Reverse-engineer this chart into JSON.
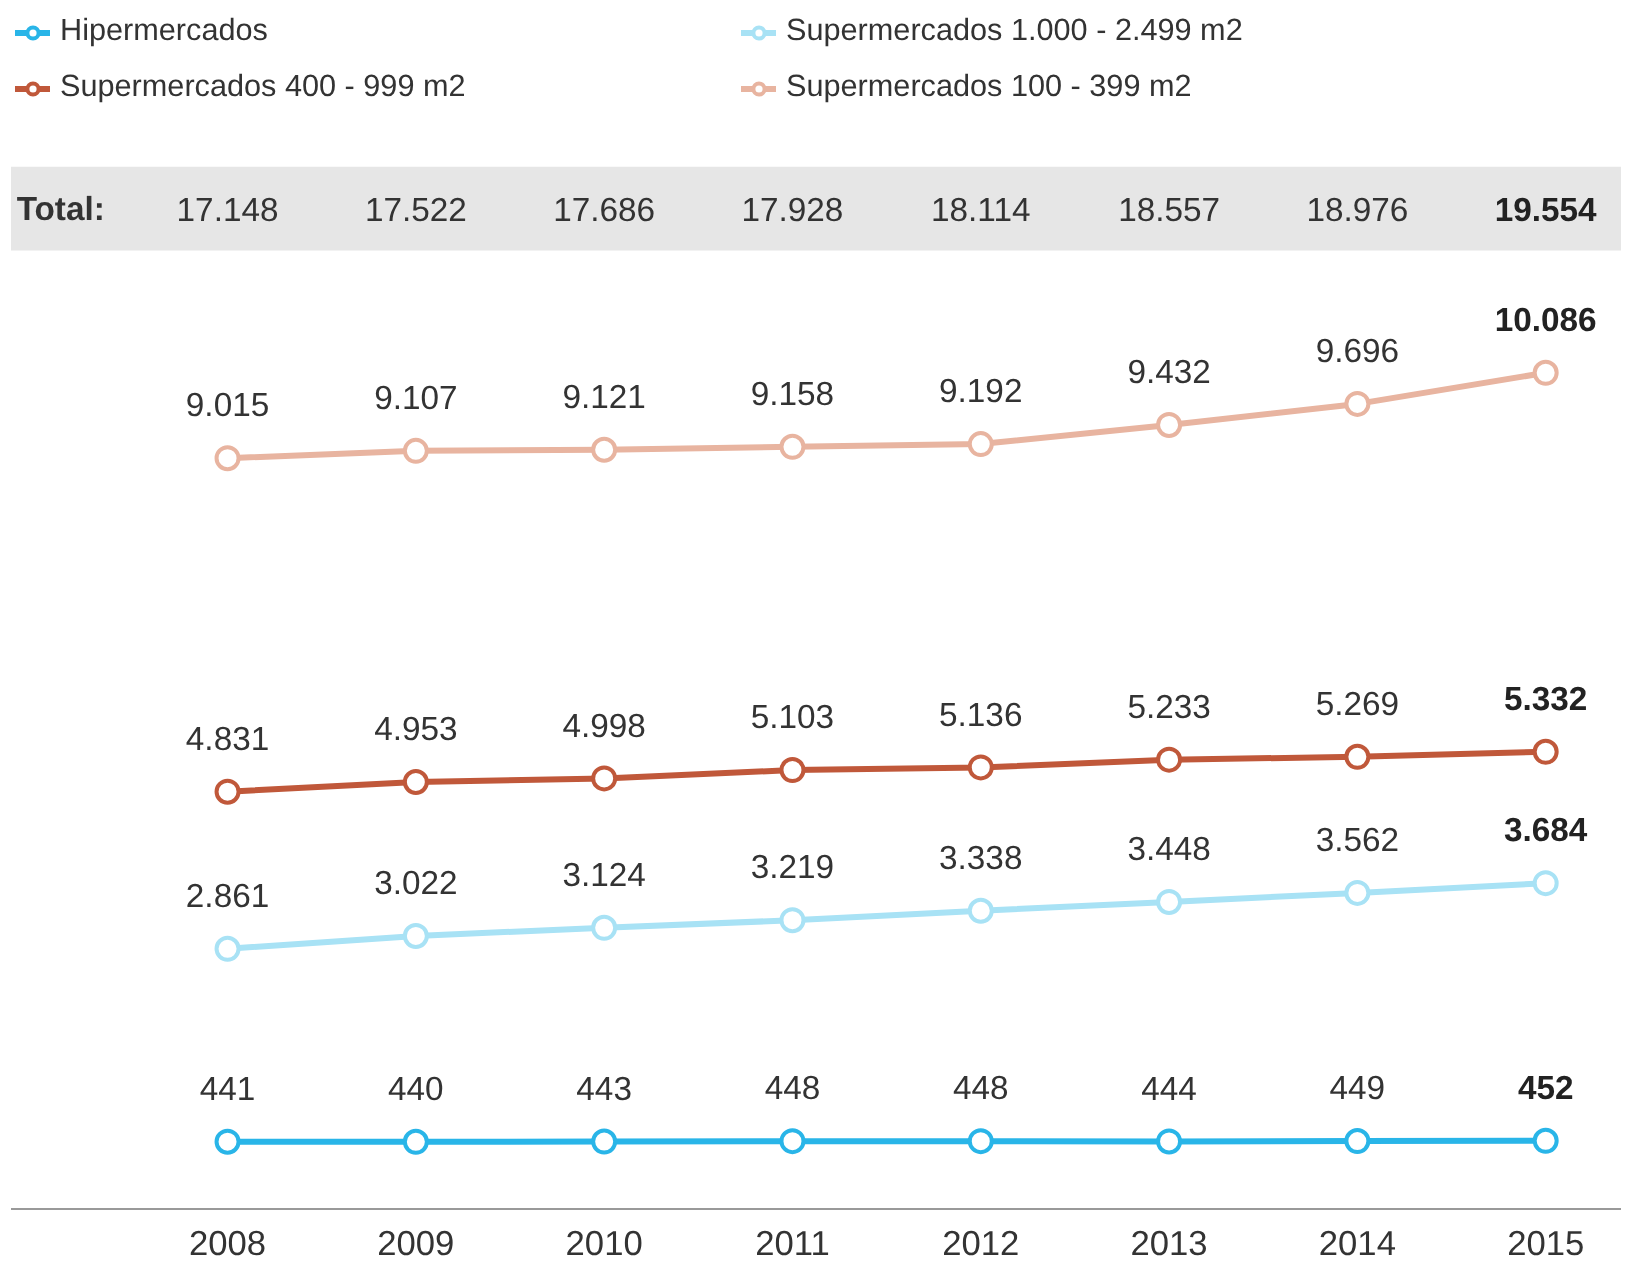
{
  "chart_data": {
    "type": "line",
    "categories": [
      "2008",
      "2009",
      "2010",
      "2011",
      "2012",
      "2013",
      "2014",
      "2015"
    ],
    "tick_labels": "x",
    "grid": false,
    "legend": "top",
    "marker": "circle",
    "line_style": "solid",
    "totals": [
      "17.148",
      "17.522",
      "17.686",
      "17.928",
      "18.114",
      "18.557",
      "18.976",
      "19.554"
    ],
    "annotations": [
      "Total:"
    ],
    "series": [
      {
        "name": "Hipermercados",
        "color": "#29b5e8",
        "values": [
          441,
          440,
          443,
          448,
          448,
          444,
          449,
          452
        ],
        "value_labels": [
          "441",
          "440",
          "443",
          "448",
          "448",
          "444",
          "449",
          "452"
        ]
      },
      {
        "name": "Supermercados 1.000 - 2.499 m2",
        "color": "#a8e2f5",
        "values": [
          2861,
          3022,
          3124,
          3219,
          3338,
          3448,
          3562,
          3684
        ],
        "value_labels": [
          "2.861",
          "3.022",
          "3.124",
          "3.219",
          "3.338",
          "3.448",
          "3.562",
          "3.684"
        ]
      },
      {
        "name": "Supermercados 400 - 999 m2",
        "color": "#c0583a",
        "values": [
          4831,
          4953,
          4998,
          5103,
          5136,
          5233,
          5269,
          5332
        ],
        "value_labels": [
          "4.831",
          "4.953",
          "4.998",
          "5.103",
          "5.136",
          "5.233",
          "5.269",
          "5.332"
        ]
      },
      {
        "name": "Supermercados 100 - 399 m2",
        "color": "#e8b4a0",
        "values": [
          9015,
          9107,
          9121,
          9158,
          9192,
          9432,
          9696,
          10086
        ],
        "value_labels": [
          "9.015",
          "9.107",
          "9.121",
          "9.158",
          "9.192",
          "9.432",
          "9.696",
          "10.086"
        ]
      }
    ]
  }
}
